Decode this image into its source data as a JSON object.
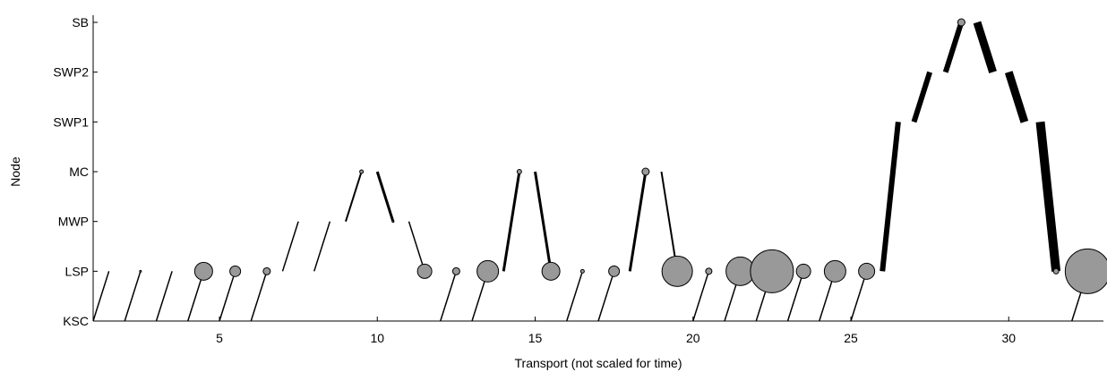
{
  "chart_data": {
    "type": "scatter",
    "title": "",
    "xlabel": "Transport (not scaled for time)",
    "ylabel": "Node",
    "xlim": [
      1,
      33
    ],
    "x_ticks": [
      5,
      10,
      15,
      20,
      25,
      30
    ],
    "y_categories": [
      "KSC",
      "LSP",
      "MWP",
      "MC",
      "SWP1",
      "SWP2",
      "SB"
    ],
    "grid": false,
    "legend": "none",
    "colors": {
      "circle_fill": "#999999",
      "line": "#000000"
    },
    "transports": [
      {
        "index": 1,
        "from": "KSC",
        "to": "LSP",
        "mass": 1
      },
      {
        "index": 2,
        "from": "KSC",
        "to": "LSP",
        "mass": 1
      },
      {
        "index": 3,
        "from": "KSC",
        "to": "LSP",
        "mass": 1
      },
      {
        "index": 4,
        "from": "KSC",
        "to": "LSP",
        "mass": 1
      },
      {
        "index": 5,
        "from": "KSC",
        "to": "LSP",
        "mass": 1
      },
      {
        "index": 6,
        "from": "KSC",
        "to": "LSP",
        "mass": 1
      },
      {
        "index": 7,
        "from": "LSP",
        "to": "MWP",
        "mass": 1
      },
      {
        "index": 8,
        "from": "LSP",
        "to": "MWP",
        "mass": 1
      },
      {
        "index": 9,
        "from": "MWP",
        "to": "MC",
        "mass": 2
      },
      {
        "index": 10,
        "from": "MC",
        "to": "MWP",
        "mass": 3
      },
      {
        "index": 11,
        "from": "MWP",
        "to": "LSP",
        "mass": 1.5
      },
      {
        "index": 12,
        "from": "KSC",
        "to": "LSP",
        "mass": 1
      },
      {
        "index": 13,
        "from": "KSC",
        "to": "LSP",
        "mass": 1
      },
      {
        "index": 14,
        "from": "LSP",
        "to": "MC",
        "mass": 3
      },
      {
        "index": 15,
        "from": "MC",
        "to": "LSP",
        "mass": 3
      },
      {
        "index": 16,
        "from": "KSC",
        "to": "LSP",
        "mass": 1
      },
      {
        "index": 17,
        "from": "KSC",
        "to": "LSP",
        "mass": 1
      },
      {
        "index": 18,
        "from": "LSP",
        "to": "MC",
        "mass": 3
      },
      {
        "index": 19,
        "from": "MC",
        "to": "LSP",
        "mass": 2
      },
      {
        "index": 20,
        "from": "KSC",
        "to": "LSP",
        "mass": 1
      },
      {
        "index": 21,
        "from": "KSC",
        "to": "LSP",
        "mass": 1
      },
      {
        "index": 22,
        "from": "KSC",
        "to": "LSP",
        "mass": 1
      },
      {
        "index": 23,
        "from": "KSC",
        "to": "LSP",
        "mass": 1
      },
      {
        "index": 24,
        "from": "KSC",
        "to": "LSP",
        "mass": 1
      },
      {
        "index": 25,
        "from": "KSC",
        "to": "LSP",
        "mass": 1
      },
      {
        "index": 26,
        "from": "LSP",
        "to": "SWP1",
        "mass": 6
      },
      {
        "index": 27,
        "from": "SWP1",
        "to": "SWP2",
        "mass": 6
      },
      {
        "index": 28,
        "from": "SWP2",
        "to": "SB",
        "mass": 6
      },
      {
        "index": 29,
        "from": "SB",
        "to": "SWP2",
        "mass": 9
      },
      {
        "index": 30,
        "from": "SWP2",
        "to": "SWP1",
        "mass": 9
      },
      {
        "index": 31,
        "from": "SWP1",
        "to": "LSP",
        "mass": 10
      },
      {
        "index": 32,
        "from": "KSC",
        "to": "LSP",
        "mass": 1
      }
    ],
    "node_stocks": [
      {
        "x": 1.5,
        "node": "LSP",
        "radius": 0
      },
      {
        "x": 2.5,
        "node": "LSP",
        "radius": 1
      },
      {
        "x": 3.5,
        "node": "LSP",
        "radius": 0
      },
      {
        "x": 4.5,
        "node": "LSP",
        "radius": 10
      },
      {
        "x": 5.5,
        "node": "LSP",
        "radius": 6
      },
      {
        "x": 6.5,
        "node": "LSP",
        "radius": 4
      },
      {
        "x": 9.5,
        "node": "MC",
        "radius": 2
      },
      {
        "x": 10.5,
        "node": "MWP",
        "radius": 1
      },
      {
        "x": 11.5,
        "node": "LSP",
        "radius": 8
      },
      {
        "x": 12.5,
        "node": "LSP",
        "radius": 4
      },
      {
        "x": 13.5,
        "node": "LSP",
        "radius": 12
      },
      {
        "x": 14.5,
        "node": "MC",
        "radius": 2.5
      },
      {
        "x": 15.5,
        "node": "LSP",
        "radius": 10
      },
      {
        "x": 16.5,
        "node": "LSP",
        "radius": 2
      },
      {
        "x": 17.5,
        "node": "LSP",
        "radius": 6
      },
      {
        "x": 18.5,
        "node": "MC",
        "radius": 4
      },
      {
        "x": 19.5,
        "node": "LSP",
        "radius": 17
      },
      {
        "x": 20.5,
        "node": "LSP",
        "radius": 3.5
      },
      {
        "x": 21.5,
        "node": "LSP",
        "radius": 16
      },
      {
        "x": 22.5,
        "node": "LSP",
        "radius": 24
      },
      {
        "x": 23.5,
        "node": "LSP",
        "radius": 8
      },
      {
        "x": 24.5,
        "node": "LSP",
        "radius": 12
      },
      {
        "x": 25.5,
        "node": "LSP",
        "radius": 9
      },
      {
        "x": 28.5,
        "node": "SB",
        "radius": 4
      },
      {
        "x": 31.5,
        "node": "LSP",
        "radius": 3
      },
      {
        "x": 32.5,
        "node": "LSP",
        "radius": 25
      }
    ]
  }
}
